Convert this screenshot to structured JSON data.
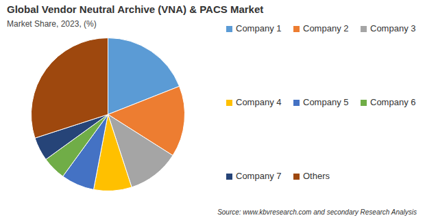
{
  "chart_data": {
    "type": "pie",
    "title": "Global Vendor Neutral Archive (VNA) & PACS Market",
    "subtitle": "Market Share, 2023, (%)",
    "source": "Source: www.kbvresearch.com and secondary Research Analysis",
    "categories": [
      "Company 1",
      "Company 2",
      "Company 3",
      "Company 4",
      "Company 5",
      "Company 6",
      "Company 7",
      "Others"
    ],
    "values": [
      19,
      15,
      11,
      8,
      7,
      5,
      5,
      30
    ],
    "colors": [
      "#5b9bd5",
      "#ed7d31",
      "#a5a5a5",
      "#ffc000",
      "#4472c4",
      "#70ad47",
      "#264478",
      "#9e480e"
    ],
    "legend": "right",
    "data_labels": false
  }
}
